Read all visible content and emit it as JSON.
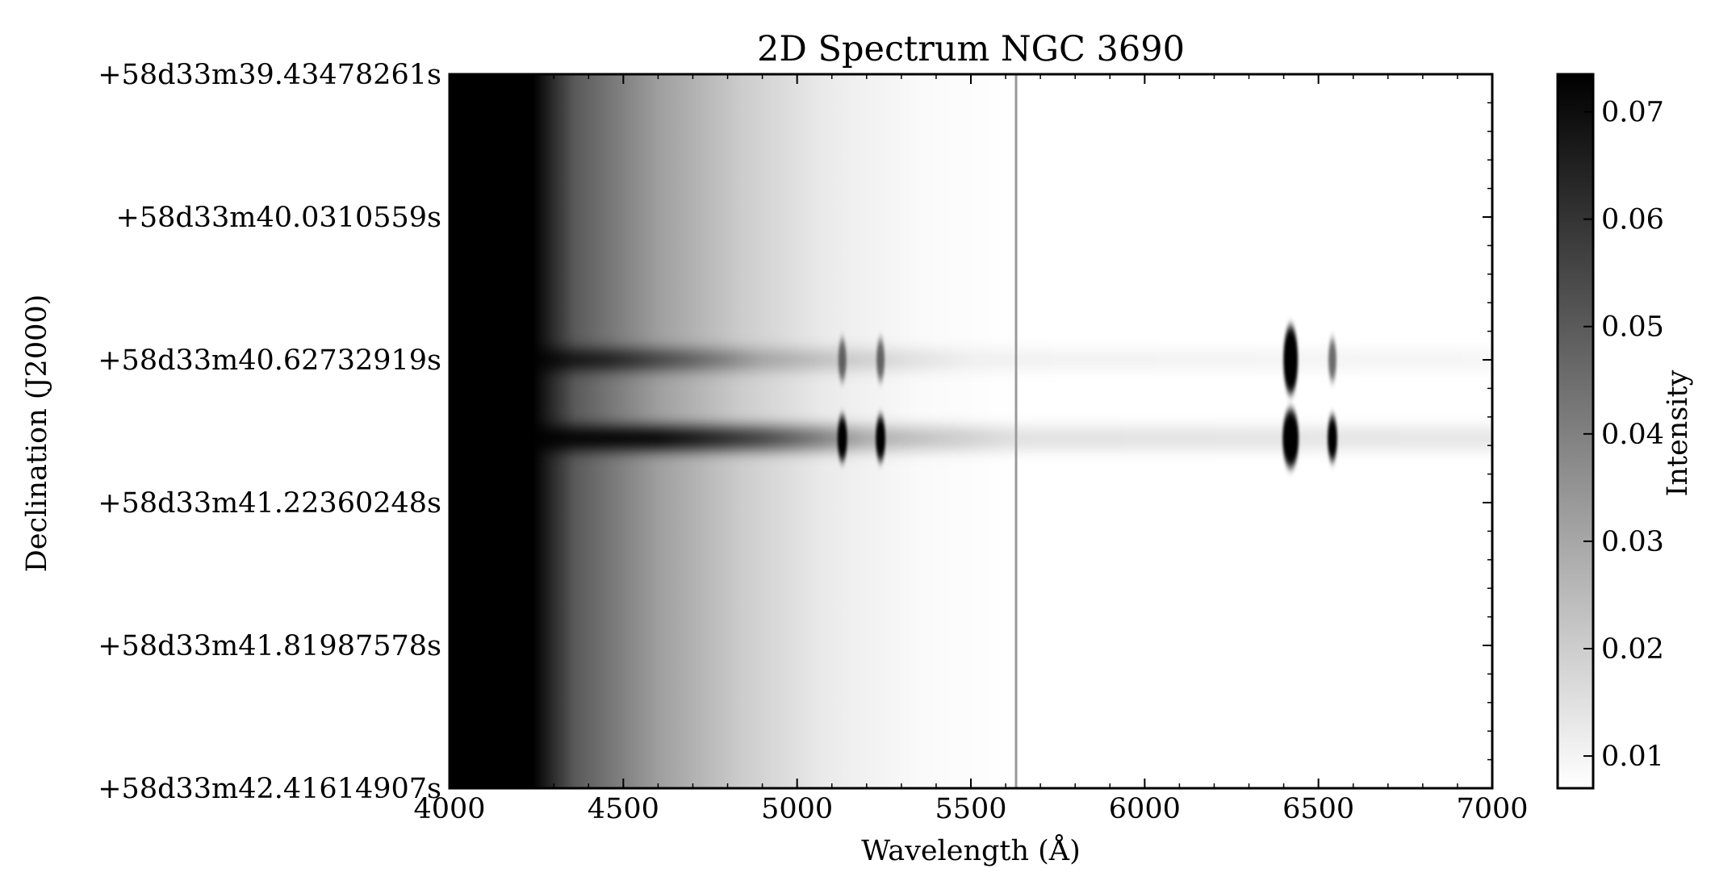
{
  "chart_data": {
    "type": "heatmap",
    "title": "2D Spectrum NGC 3690",
    "xlabel": "Wavelength (Å)",
    "ylabel": "Declination (J2000)",
    "colorbar_label": "Intensity",
    "xlim": [
      4000,
      7000
    ],
    "x_ticks": [
      "4000",
      "4500",
      "5000",
      "5500",
      "6000",
      "6500",
      "7000"
    ],
    "y_ticks": [
      "+58d33m39.43478261s",
      "+58d33m40.0310559s",
      "+58d33m40.62732919s",
      "+58d33m41.22360248s",
      "+58d33m41.81987578s",
      "+58d33m42.41614907s"
    ],
    "colorbar_ticks": [
      "0.07",
      "0.06",
      "0.05",
      "0.04",
      "0.03",
      "0.02",
      "0.01"
    ],
    "colorbar_range": [
      0.007,
      0.0735
    ],
    "colormap": "gray_r",
    "grid": false,
    "continuum_traces": [
      {
        "name_hint": "upper",
        "dec_fraction": 0.4
      },
      {
        "name_hint": "lower",
        "dec_fraction": 0.51
      }
    ],
    "emission_lines_angstrom": [
      5130,
      5240,
      6420,
      6540
    ],
    "sky_line_angstrom": 5630,
    "colors": {
      "background": "#ffffff",
      "ink": "#000000"
    }
  }
}
